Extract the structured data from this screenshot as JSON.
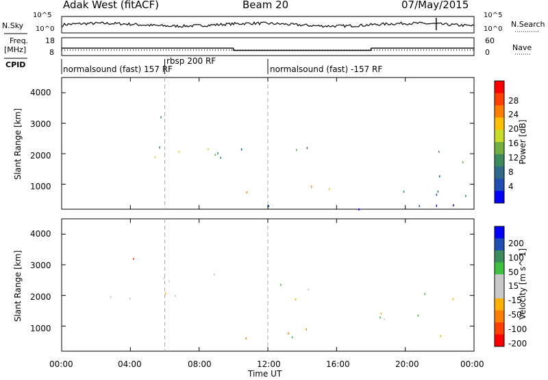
{
  "header": {
    "radar": "Adak West (fitACF)",
    "beam": "Beam 20",
    "date": "07/May/2015"
  },
  "top_panels": {
    "nsky_label": "N.Sky",
    "nsky_ticks": [
      "10^5",
      "10^0"
    ],
    "nsearch_label": "N.Search",
    "nsearch_ticks": [
      "10^5",
      "10^0"
    ],
    "freq_label": "Freq.",
    "freq_unit": "[MHz]",
    "freq_ticks": [
      "18",
      "8"
    ],
    "nave_label": "Nave",
    "nave_ticks": [
      "60",
      "0"
    ],
    "cpid_label": "CPID",
    "cpid_segments": [
      {
        "label": "normalsound (fast) 157 RF",
        "start_hour": 0,
        "end_hour": 6
      },
      {
        "label": "rbsp 200 RF",
        "start_hour": 6,
        "end_hour": 12
      },
      {
        "label": "normalsound (fast) -157 RF",
        "start_hour": 12,
        "end_hour": 24
      }
    ],
    "freq_steps": [
      {
        "start_hour": 0,
        "end_hour": 10,
        "value": 12.0
      },
      {
        "start_hour": 10,
        "end_hour": 18,
        "value": 10.5
      },
      {
        "start_hour": 18,
        "end_hour": 24,
        "value": 12.0
      }
    ]
  },
  "colors": {
    "power_scale": [
      "#0000ff",
      "#1f4fb4",
      "#2e6b8a",
      "#3c8c5e",
      "#70b040",
      "#c8dc28",
      "#ffc000",
      "#ff8000",
      "#ff4000",
      "#ff0000"
    ],
    "velocity_scale": [
      "#ff0000",
      "#ff4000",
      "#ff8000",
      "#ffb000",
      "#c8c8c8",
      "#c8c8c8",
      "#40c040",
      "#3c8c5e",
      "#1f4fb4",
      "#0000ff"
    ],
    "ground_scatter": "#c0c0c0"
  },
  "chart_data": [
    {
      "type": "heatmap",
      "title": "",
      "xlabel": "",
      "ylabel": "Slant Range [km]",
      "xlim": [
        0,
        24
      ],
      "ylim": [
        180,
        4500
      ],
      "y_ticks": [
        "1000",
        "2000",
        "3000",
        "4000"
      ],
      "colorbar": {
        "label": "Power [dB]",
        "ticks": [
          "4",
          "8",
          "12",
          "16",
          "20",
          "24",
          "28"
        ],
        "range": [
          0,
          30
        ]
      },
      "echo_regions": [
        {
          "x": [
            4.0,
            6.0
          ],
          "y": [
            3150,
            3450
          ],
          "level": 10
        },
        {
          "x": [
            2.5,
            9.8
          ],
          "y": [
            1900,
            2750
          ],
          "level": 14
        },
        {
          "x": [
            9.9,
            14.5
          ],
          "y": [
            1800,
            2400
          ],
          "level": 10
        },
        {
          "x": [
            10.0,
            15.8
          ],
          "y": [
            600,
            1100
          ],
          "level": 20
        },
        {
          "x": [
            18.5,
            24.0
          ],
          "y": [
            600,
            1450
          ],
          "level": 8
        },
        {
          "x": [
            20.5,
            24.0
          ],
          "y": [
            1700,
            2200
          ],
          "level": 8
        },
        {
          "x": [
            0.0,
            24.0
          ],
          "y": [
            180,
            350
          ],
          "level": 6
        }
      ]
    },
    {
      "type": "heatmap",
      "title": "",
      "xlabel": "Time UT",
      "ylabel": "Slant Range [km]",
      "xlim": [
        0,
        24
      ],
      "ylim": [
        180,
        4500
      ],
      "x_ticks": [
        "00:00",
        "04:00",
        "08:00",
        "12:00",
        "16:00",
        "20:00",
        "00:00"
      ],
      "y_ticks": [
        "1000",
        "2000",
        "3000",
        "4000"
      ],
      "colorbar": {
        "label": "Velocity [m s^-1]",
        "ticks": [
          "200",
          "100",
          "50",
          "15",
          "-15",
          "-50",
          "-100",
          "-200"
        ],
        "range": [
          -250,
          250
        ]
      },
      "echo_regions": [
        {
          "x": [
            4.0,
            6.0
          ],
          "y": [
            3150,
            3450
          ],
          "velocity": -200
        },
        {
          "x": [
            2.5,
            9.8
          ],
          "y": [
            1900,
            2750
          ],
          "velocity": 0
        },
        {
          "x": [
            9.9,
            14.5
          ],
          "y": [
            1800,
            2400
          ],
          "velocity": 0
        },
        {
          "x": [
            10.0,
            15.8
          ],
          "y": [
            600,
            1100
          ],
          "velocity": -60
        },
        {
          "x": [
            12.5,
            15.0
          ],
          "y": [
            600,
            800
          ],
          "velocity": 40
        },
        {
          "x": [
            18.5,
            24.0
          ],
          "y": [
            600,
            1450
          ],
          "velocity": 0
        },
        {
          "x": [
            20.5,
            24.0
          ],
          "y": [
            1700,
            2200
          ],
          "velocity": 0
        }
      ]
    }
  ]
}
